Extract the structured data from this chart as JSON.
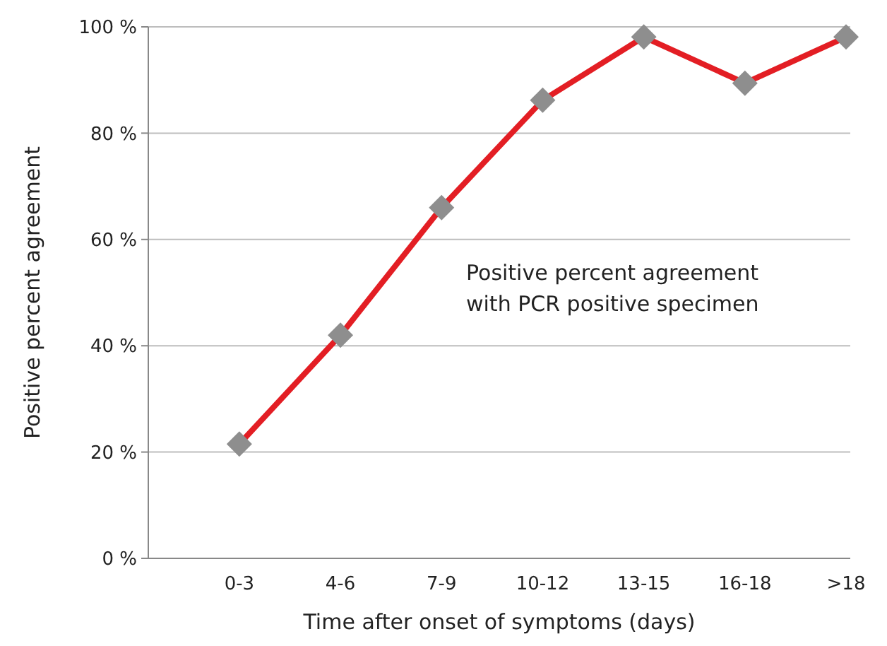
{
  "chart_data": {
    "type": "line",
    "xlabel": "Time after onset of symptoms (days)",
    "ylabel": "Positive percent agreement",
    "categories": [
      "0-3",
      "4-6",
      "7-9",
      "10-12",
      "13-15",
      "16-18",
      ">18"
    ],
    "series": [
      {
        "color": "#e31e24",
        "values": [
          21.5,
          42,
          66,
          86.2,
          98.1,
          89.4,
          98.1
        ]
      }
    ],
    "marker": "diamond",
    "line_style": "solid",
    "grid": "y",
    "ylim": [
      0,
      100
    ],
    "yticks": [
      {
        "value": 0,
        "label": "0 %"
      },
      {
        "value": 20,
        "label": "20 %"
      },
      {
        "value": 40,
        "label": "40 %"
      },
      {
        "value": 60,
        "label": "60 %"
      },
      {
        "value": 80,
        "label": "80 %"
      },
      {
        "value": 100,
        "label": "100 %"
      }
    ],
    "annotations": [
      "Positive percent agreement\nwith PCR positive specimen"
    ]
  }
}
